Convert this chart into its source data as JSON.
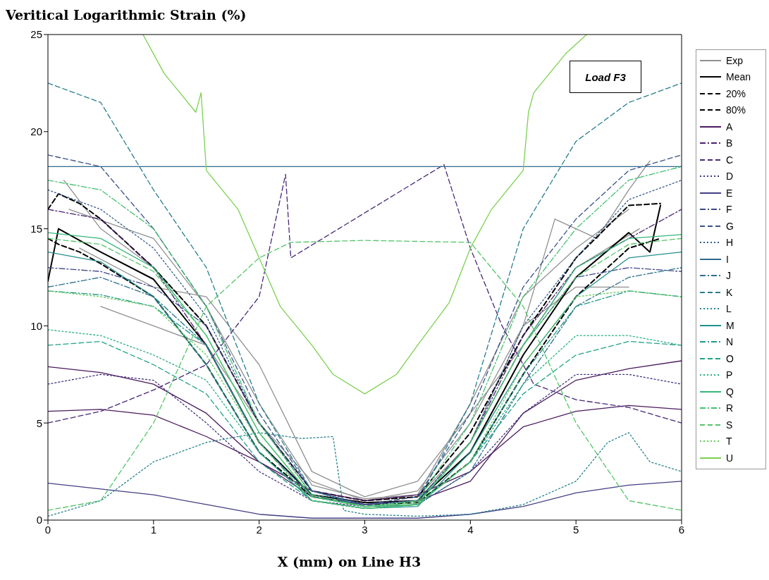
{
  "chart_data": {
    "type": "line",
    "ylabel": "Veritical Logarithmic Strain (%)",
    "xlabel": "X (mm) on Line H3",
    "annotations": [
      "Load F3"
    ],
    "xlim": [
      0,
      6
    ],
    "ylim": [
      0,
      25
    ],
    "xticks": [
      0,
      1,
      2,
      3,
      4,
      5,
      6
    ],
    "yticks": [
      0,
      5,
      10,
      15,
      20,
      25
    ],
    "legend": "right",
    "marker": "none",
    "x": [
      0,
      0.5,
      1,
      1.5,
      2,
      2.5,
      3,
      3.5,
      4,
      4.5,
      5,
      5.5,
      6
    ],
    "series": [
      {
        "name": "Exp",
        "color": "#909090",
        "line_style": "solid",
        "x": [
          0.15,
          0.5,
          1,
          1.5,
          2,
          2.5,
          3,
          3.5,
          4,
          4.5,
          4.8,
          5.2,
          5.5,
          5.7
        ],
        "values": [
          17.5,
          15,
          13,
          10,
          5,
          1.5,
          1,
          1.2,
          4,
          10,
          15.5,
          14.5,
          17,
          18.5
        ]
      },
      {
        "color": "#909090",
        "line_style": "solid",
        "x": [
          0.5,
          1,
          1.5,
          2,
          2.5,
          3,
          3.5,
          4,
          4.5,
          5,
          5.5
        ],
        "values": [
          11,
          10,
          9,
          5,
          2,
          1,
          1.5,
          5,
          10,
          12,
          12
        ]
      },
      {
        "color": "#909090",
        "line_style": "solid",
        "x": [
          0.2,
          1,
          1.5,
          2,
          2.5,
          3,
          3.5,
          4,
          4.5,
          5,
          5.5
        ],
        "values": [
          16,
          14.5,
          11,
          6,
          1.8,
          1.1,
          1.3,
          6,
          11.5,
          14,
          16
        ]
      },
      {
        "color": "#909090",
        "line_style": "solid",
        "x": [
          0.3,
          1,
          1.5,
          2,
          2.5,
          3,
          3.5,
          4,
          4.5,
          5,
          5.6
        ],
        "values": [
          14,
          12,
          11.5,
          8,
          2.5,
          1.2,
          2,
          5.5,
          9,
          13,
          15
        ]
      },
      {
        "name": "Mean",
        "color": "#000000",
        "line_style": "solid",
        "x": [
          0,
          0.1,
          0.5,
          1,
          1.5,
          2,
          2.5,
          3,
          3.5,
          4,
          4.5,
          5,
          5.5,
          5.7,
          5.8
        ],
        "values": [
          12.3,
          15,
          13.8,
          12.4,
          9,
          4,
          1.3,
          0.9,
          1,
          3.5,
          8.5,
          12.5,
          14.8,
          13.8,
          16.2
        ]
      },
      {
        "name": "20%",
        "color": "#000000",
        "line_style": "dashed",
        "x": [
          0,
          0.1,
          0.3,
          0.5,
          1,
          1.5,
          2,
          2.5,
          3,
          3.5,
          4,
          4.5,
          5,
          5.5,
          5.8
        ],
        "values": [
          14.5,
          14.2,
          13.8,
          13.2,
          11.5,
          8,
          3.5,
          1.2,
          0.8,
          0.9,
          3,
          7.5,
          11.5,
          14,
          14.5
        ]
      },
      {
        "name": "80%",
        "color": "#000000",
        "line_style": "dashed",
        "x": [
          0,
          0.1,
          0.3,
          0.5,
          1,
          1.5,
          2,
          2.5,
          3,
          3.5,
          4,
          4.5,
          5,
          5.5,
          5.8
        ],
        "values": [
          16,
          16.8,
          16.3,
          15.5,
          13,
          10,
          5,
          1.5,
          1,
          1.2,
          4.5,
          9.5,
          13.5,
          16.2,
          16.3
        ]
      },
      {
        "name": "A",
        "color": "#4a1a5e",
        "line_style": "solid",
        "values": [
          5.6,
          5.7,
          5.4,
          4.3,
          3,
          1.5,
          1,
          1.3,
          2.5,
          4.8,
          5.6,
          5.9,
          5.7
        ]
      },
      {
        "color": "#4a1a5e",
        "line_style": "solid",
        "values": [
          7.9,
          7.6,
          7,
          5.5,
          3,
          1.2,
          0.8,
          1,
          2,
          5.5,
          7.2,
          7.8,
          8.2
        ]
      },
      {
        "name": "B",
        "color": "#4b2070",
        "line_style": "dashdot",
        "values": [
          16,
          15.5,
          13,
          9,
          4,
          1.2,
          0.8,
          1,
          4,
          9.5,
          13,
          14.5,
          16
        ]
      },
      {
        "name": "C",
        "color": "#482878",
        "line_style": "dashed",
        "x": [
          0,
          0.5,
          1,
          1.5,
          2,
          2.25,
          2.3,
          3.75,
          4,
          4.3,
          4.6,
          5,
          5.5,
          6
        ],
        "values": [
          5,
          5.6,
          6.7,
          8,
          11.5,
          17.8,
          13.5,
          18.3,
          14,
          10,
          7,
          6.2,
          5.8,
          5
        ]
      },
      {
        "name": "D",
        "color": "#46327e",
        "line_style": "dotted",
        "values": [
          7,
          7.5,
          7.2,
          5,
          2.5,
          1,
          0.7,
          0.8,
          2.5,
          5.5,
          7.5,
          7.5,
          7
        ]
      },
      {
        "name": "E",
        "color": "#433e85",
        "line_style": "solid",
        "values": [
          1.9,
          1.6,
          1.3,
          0.8,
          0.3,
          0.1,
          0.1,
          0.1,
          0.3,
          0.7,
          1.4,
          1.8,
          2
        ]
      },
      {
        "name": "F",
        "color": "#3f4889",
        "line_style": "dashdot",
        "values": [
          13,
          12.8,
          12,
          10,
          5,
          1.5,
          0.8,
          1,
          4,
          9,
          12.5,
          13,
          12.8
        ]
      },
      {
        "name": "G",
        "color": "#3b528b",
        "line_style": "dashed",
        "values": [
          18.8,
          18.2,
          15,
          11,
          5.5,
          1.5,
          0.8,
          1.2,
          5.5,
          12,
          15.5,
          18,
          18.8
        ]
      },
      {
        "name": "H",
        "color": "#365c8d",
        "line_style": "dotted",
        "values": [
          17,
          16,
          14,
          10.5,
          5,
          1.3,
          0.8,
          1,
          4,
          10,
          13.5,
          16.5,
          17.5
        ]
      },
      {
        "name": "I",
        "color": "#31688e",
        "line_style": "solid",
        "x": [
          0,
          6
        ],
        "values": [
          18.2,
          18.2
        ]
      },
      {
        "name": "J",
        "color": "#2c728e",
        "line_style": "dashdot",
        "values": [
          12,
          12.5,
          11.5,
          9,
          4,
          1.2,
          0.7,
          0.8,
          2.5,
          7,
          11,
          12.5,
          13
        ]
      },
      {
        "name": "K",
        "color": "#287d8e",
        "line_style": "dashed",
        "values": [
          22.5,
          21.5,
          17,
          13,
          6,
          1.5,
          0.7,
          1,
          6,
          15,
          19.5,
          21.5,
          22.5
        ]
      },
      {
        "name": "L",
        "color": "#26828e",
        "line_style": "dotted",
        "x": [
          0,
          0.5,
          1,
          1.5,
          2,
          2.4,
          2.7,
          2.8,
          3,
          3.5,
          4,
          4.5,
          5,
          5.3,
          5.5,
          5.7,
          6
        ],
        "values": [
          0.2,
          1,
          3,
          4,
          4.5,
          4.2,
          4.3,
          0.5,
          0.3,
          0.2,
          0.3,
          0.8,
          2,
          4,
          4.5,
          3,
          2.5
        ]
      },
      {
        "name": "M",
        "color": "#21918c",
        "line_style": "solid",
        "values": [
          13.8,
          13.3,
          11.5,
          8,
          3.5,
          1,
          0.6,
          0.7,
          3.5,
          8,
          11.5,
          13.5,
          13.8
        ]
      },
      {
        "name": "N",
        "color": "#1f988b",
        "line_style": "dashdot",
        "values": [
          11.8,
          11.6,
          11,
          9,
          4,
          1,
          0.6,
          0.8,
          3,
          7.5,
          11,
          11.8,
          11.5
        ]
      },
      {
        "name": "O",
        "color": "#20a386",
        "line_style": "dashed",
        "values": [
          9,
          9.2,
          8,
          6.5,
          3,
          1,
          0.6,
          0.8,
          3,
          6.5,
          8.5,
          9.2,
          9
        ]
      },
      {
        "name": "P",
        "color": "#28ae80",
        "line_style": "dotted",
        "values": [
          9.8,
          9.5,
          8.5,
          7.2,
          3.5,
          1,
          0.6,
          0.8,
          3,
          7,
          9.5,
          9.5,
          9
        ]
      },
      {
        "name": "Q",
        "color": "#35b779",
        "line_style": "solid",
        "values": [
          14.8,
          14.5,
          13,
          9.5,
          4.5,
          1.2,
          0.7,
          0.8,
          4,
          9,
          13,
          14.5,
          14.7
        ]
      },
      {
        "name": "R",
        "color": "#44bf70",
        "line_style": "dashdot",
        "values": [
          17.5,
          17,
          15,
          11,
          5,
          1.3,
          0.7,
          1,
          5,
          11.5,
          15,
          17.5,
          18.2
        ]
      },
      {
        "name": "S",
        "color": "#54c568",
        "line_style": "dashed",
        "values": [
          14.5,
          14.2,
          12.8,
          9.5,
          4.5,
          1.2,
          0.7,
          0.9,
          4,
          9,
          12.5,
          14.2,
          14.5
        ]
      },
      {
        "color": "#54c568",
        "line_style": "dashed",
        "x": [
          0,
          0.5,
          1,
          1.5,
          2,
          2.3,
          3,
          4,
          4.5,
          5,
          5.5,
          6
        ],
        "values": [
          0.5,
          1,
          5,
          11,
          13.5,
          14.3,
          14.4,
          14.3,
          11,
          5,
          1,
          0.5
        ]
      },
      {
        "name": "T",
        "color": "#66cc5d",
        "line_style": "dotted",
        "values": [
          11.8,
          11.5,
          11,
          8.5,
          4,
          1,
          0.6,
          0.8,
          3,
          8,
          11.5,
          11.8,
          11.5
        ]
      },
      {
        "name": "U",
        "color": "#7ad151",
        "line_style": "solid",
        "x": [
          0.9,
          1.1,
          1.4,
          1.45,
          1.5,
          1.8,
          2,
          2.2,
          2.5,
          2.7,
          3,
          3.3,
          3.5,
          3.8,
          4,
          4.2,
          4.5,
          4.55,
          4.6,
          4.9,
          5.1
        ],
        "values": [
          25,
          23,
          21,
          22,
          18,
          16,
          13.5,
          11,
          9,
          7.5,
          6.5,
          7.5,
          9,
          11.2,
          14,
          16,
          18,
          21,
          22,
          24,
          25
        ]
      }
    ]
  }
}
